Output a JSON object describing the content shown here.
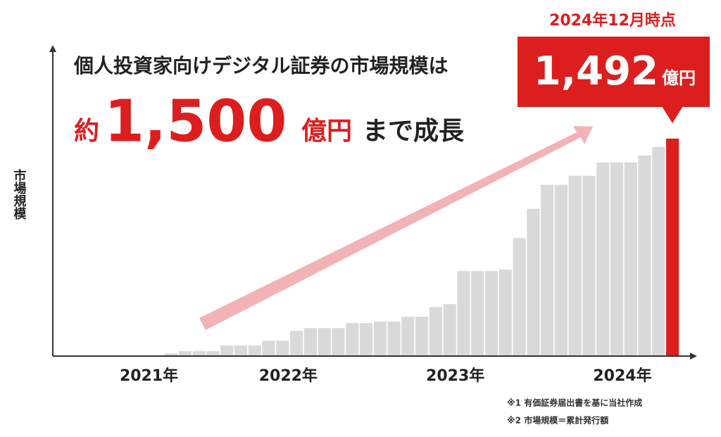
{
  "chart_data": {
    "type": "bar",
    "title": {
      "line1": "個人投資家向けデジタル証券の市場規模は",
      "prefix": "約",
      "amount": "1,500",
      "unit": "億円",
      "suffix": "まで成長"
    },
    "y_label": "市場規模",
    "categories": [
      null,
      null,
      null,
      null,
      null,
      null,
      "2021年",
      null,
      null,
      null,
      null,
      null,
      null,
      null,
      null,
      null,
      "2022年",
      null,
      null,
      null,
      null,
      null,
      null,
      null,
      null,
      null,
      null,
      null,
      "2023年",
      null,
      null,
      null,
      null,
      null,
      null,
      null,
      null,
      null,
      null,
      null,
      "2024年",
      null,
      null,
      null,
      null
    ],
    "values": [
      0,
      0,
      0,
      0,
      0,
      0,
      0,
      0,
      14,
      29,
      29,
      29,
      68,
      68,
      68,
      101,
      101,
      169,
      188,
      188,
      188,
      222,
      222,
      232,
      232,
      266,
      266,
      333,
      353,
      580,
      580,
      580,
      590,
      807,
      1009,
      1174,
      1174,
      1236,
      1236,
      1328,
      1328,
      1328,
      1376,
      1435,
      1492
    ],
    "color": "#d9d9d9",
    "highlight": {
      "index": 44,
      "color": "#dc1e1e"
    },
    "callout": {
      "label": "2024年12月時点",
      "value_label": "1,492",
      "unit": "億円"
    },
    "notes": [
      "※1 有価証券届出書を基に当社作成",
      "※2 市場規模＝累計発行額"
    ]
  }
}
